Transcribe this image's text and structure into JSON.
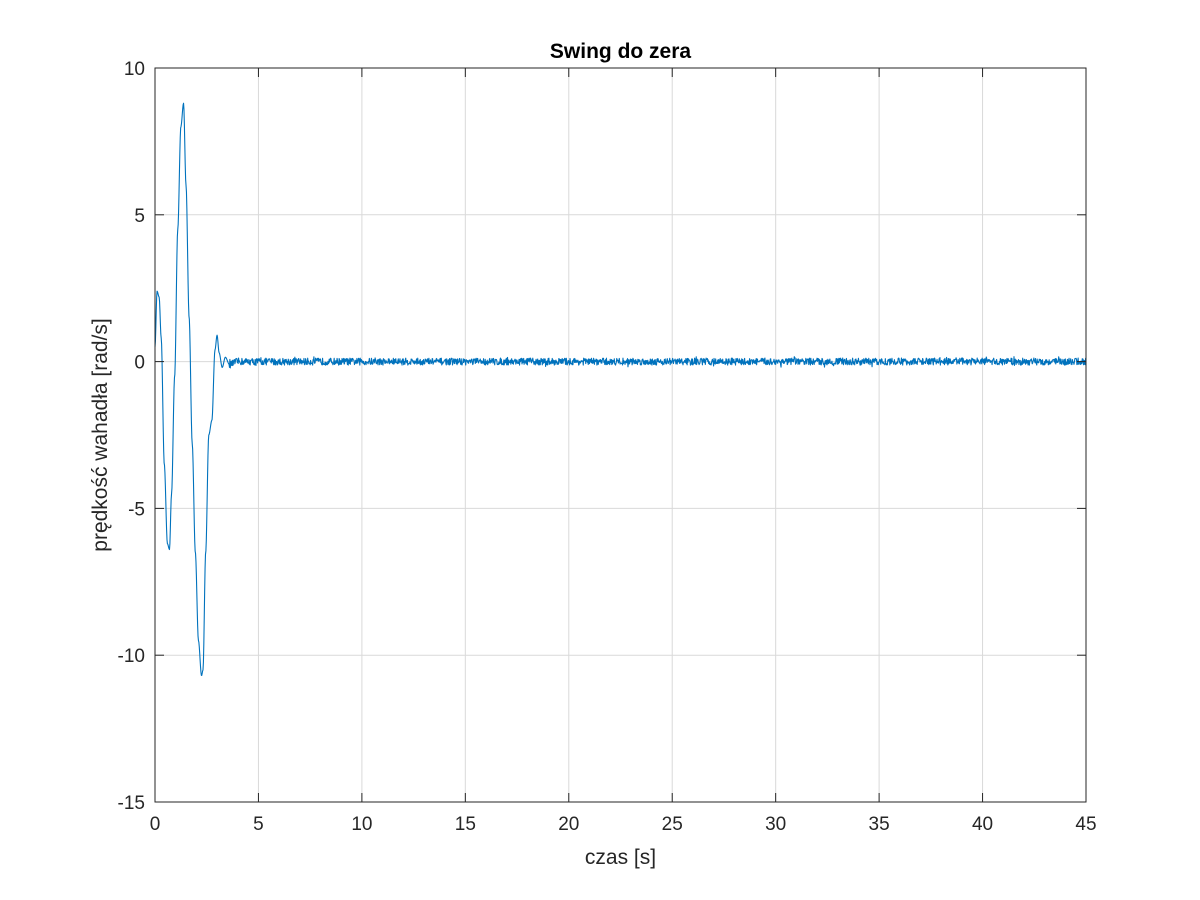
{
  "chart_data": {
    "type": "line",
    "title": "Swing do zera",
    "xlabel": "czas [s]",
    "ylabel": "prędkość wahadła [rad/s]",
    "xlim": [
      0,
      45
    ],
    "ylim": [
      -15,
      10
    ],
    "xticks": [
      0,
      5,
      10,
      15,
      20,
      25,
      30,
      35,
      40,
      45
    ],
    "yticks": [
      -15,
      -10,
      -5,
      0,
      5,
      10
    ],
    "xtick_labels": [
      "0",
      "5",
      "10",
      "15",
      "20",
      "25",
      "30",
      "35",
      "40",
      "45"
    ],
    "ytick_labels": [
      "-15",
      "-10",
      "-5",
      "0",
      "5",
      "10"
    ],
    "grid": true,
    "legend": "none",
    "colors": {
      "line": "#0072BD",
      "grid": "#d9d9d9",
      "axes": "#262626"
    },
    "series": [
      {
        "color": "#0072BD",
        "x": [
          0,
          0.1,
          0.2,
          0.3,
          0.45,
          0.6,
          0.7,
          0.8,
          0.95,
          1.1,
          1.25,
          1.38,
          1.5,
          1.65,
          1.8,
          1.95,
          2.1,
          2.25,
          2.32,
          2.45,
          2.6,
          2.75,
          2.9,
          3.0,
          3.1,
          3.25,
          3.4,
          3.6,
          4.0,
          45
        ],
        "y": [
          0.5,
          2.4,
          2.2,
          0.8,
          -3.5,
          -6.2,
          -6.4,
          -4.5,
          -0.5,
          4.5,
          8.0,
          8.8,
          6.0,
          1.5,
          -2.8,
          -6.5,
          -9.5,
          -10.7,
          -10.5,
          -6.5,
          -2.5,
          -2.0,
          0.4,
          0.9,
          0.3,
          -0.2,
          0.15,
          -0.1,
          0.0,
          0.0
        ],
        "noise_after_x": 3.6,
        "noise_amplitude": 0.2
      }
    ]
  }
}
